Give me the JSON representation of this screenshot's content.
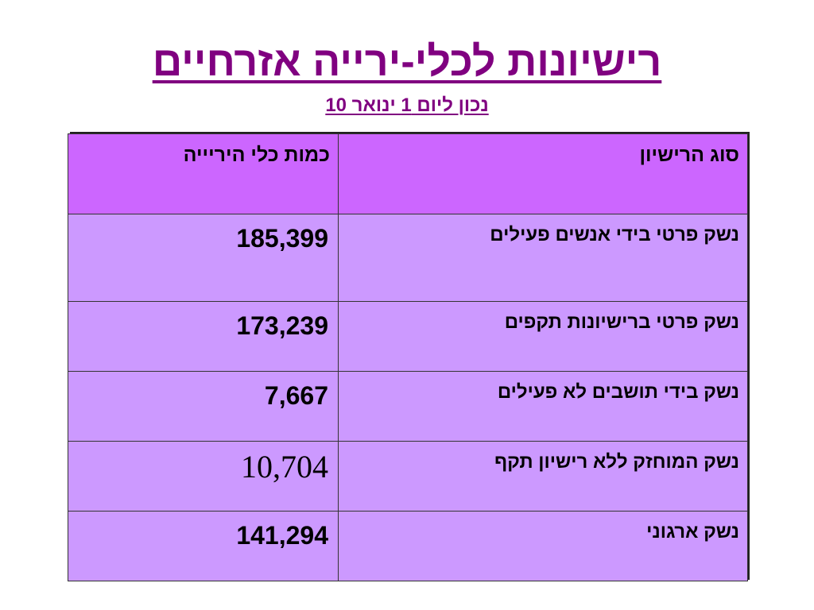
{
  "slide": {
    "title": "רישיונות לכלי-ירייה אזרחיים",
    "subtitle": "נכון ליום 1 ינואר  10"
  },
  "table": {
    "headers": {
      "type": "סוג הרישיון",
      "quantity": "כמות כלי היריייה"
    },
    "rows": [
      {
        "type": "נשק פרטי בידי אנשים פעילים",
        "quantity": "185,399"
      },
      {
        "type": "נשק פרטי ברישיונות תקפים",
        "quantity": "173,239"
      },
      {
        "type": "נשק בידי תושבים לא פעילים",
        "quantity": "7,667"
      },
      {
        "type": "נשק המוחזק ללא רישיון תקף",
        "quantity": "10,704"
      },
      {
        "type": "נשק ארגוני",
        "quantity": "141,294"
      }
    ]
  },
  "colors": {
    "title": "#800080",
    "header_bg": "#cc66ff",
    "row_bg": "#cc99ff"
  }
}
